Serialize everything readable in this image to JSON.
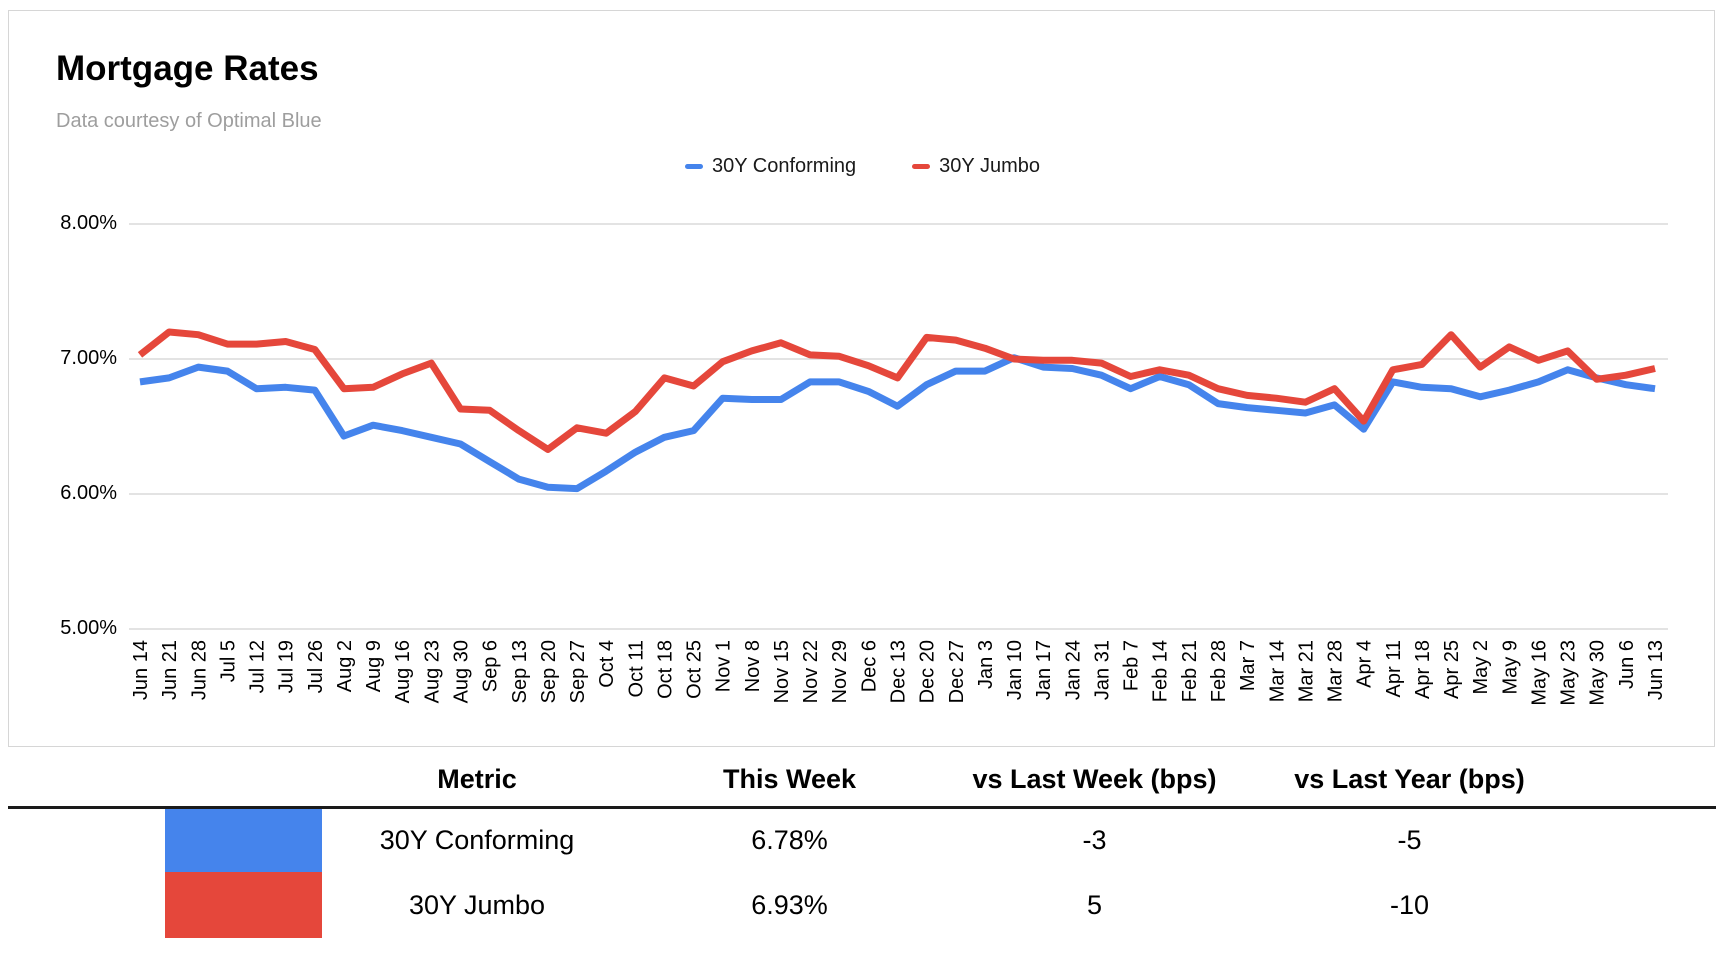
{
  "header": {
    "title": "Mortgage Rates",
    "subtitle": "Data courtesy of Optimal Blue"
  },
  "colors": {
    "conforming_blue": "#4584ec",
    "jumbo_red": "#e5473b",
    "gridline": "#dadada",
    "subtitle_gray": "#9e9e9e"
  },
  "legend": [
    {
      "label": "30Y Conforming",
      "color": "#4584ec"
    },
    {
      "label": "30Y Jumbo",
      "color": "#e5473b"
    }
  ],
  "chart_data": {
    "type": "line",
    "title": "Mortgage Rates",
    "xlabel": "",
    "ylabel": "",
    "ylim": [
      5.0,
      8.0
    ],
    "grid": true,
    "legend_position": "top",
    "y_ticks": [
      {
        "value": 8,
        "label": "8.00%"
      },
      {
        "value": 7,
        "label": "7.00%"
      },
      {
        "value": 6,
        "label": "6.00%"
      },
      {
        "value": 5,
        "label": "5.00%"
      }
    ],
    "x": [
      "Jun 14",
      "Jun 21",
      "Jun 28",
      "Jul 5",
      "Jul 12",
      "Jul 19",
      "Jul 26",
      "Aug 2",
      "Aug 9",
      "Aug 16",
      "Aug 23",
      "Aug 30",
      "Sep 6",
      "Sep 13",
      "Sep 20",
      "Sep 27",
      "Oct 4",
      "Oct 11",
      "Oct 18",
      "Oct 25",
      "Nov 1",
      "Nov 8",
      "Nov 15",
      "Nov 22",
      "Nov 29",
      "Dec 6",
      "Dec 13",
      "Dec 20",
      "Dec 27",
      "Jan 3",
      "Jan 10",
      "Jan 17",
      "Jan 24",
      "Jan 31",
      "Feb 7",
      "Feb 14",
      "Feb 21",
      "Feb 28",
      "Mar 7",
      "Mar 14",
      "Mar 21",
      "Mar 28",
      "Apr 4",
      "Apr 11",
      "Apr 18",
      "Apr 25",
      "May 2",
      "May 9",
      "May 16",
      "May 23",
      "May 30",
      "Jun 6",
      "Jun 13"
    ],
    "series": [
      {
        "name": "30Y Conforming",
        "color": "#4584ec",
        "values": [
          6.83,
          6.86,
          6.94,
          6.91,
          6.78,
          6.79,
          6.77,
          6.43,
          6.51,
          6.47,
          6.42,
          6.37,
          6.24,
          6.11,
          6.05,
          6.04,
          6.17,
          6.31,
          6.42,
          6.47,
          6.71,
          6.7,
          6.7,
          6.83,
          6.83,
          6.76,
          6.65,
          6.81,
          6.91,
          6.91,
          7.01,
          6.94,
          6.93,
          6.88,
          6.78,
          6.87,
          6.81,
          6.67,
          6.64,
          6.62,
          6.6,
          6.66,
          6.48,
          6.83,
          6.79,
          6.78,
          6.72,
          6.77,
          6.83,
          6.92,
          6.86,
          6.81,
          6.78
        ]
      },
      {
        "name": "30Y Jumbo",
        "color": "#e5473b",
        "values": [
          7.03,
          7.2,
          7.18,
          7.11,
          7.11,
          7.13,
          7.07,
          6.78,
          6.79,
          6.89,
          6.97,
          6.63,
          6.62,
          6.47,
          6.33,
          6.49,
          6.45,
          6.61,
          6.86,
          6.8,
          6.98,
          7.06,
          7.12,
          7.03,
          7.02,
          6.95,
          6.86,
          7.16,
          7.14,
          7.08,
          7.0,
          6.99,
          6.99,
          6.97,
          6.87,
          6.92,
          6.88,
          6.78,
          6.73,
          6.71,
          6.68,
          6.78,
          6.54,
          6.92,
          6.96,
          7.18,
          6.94,
          7.09,
          6.99,
          7.06,
          6.85,
          6.88,
          6.93
        ]
      }
    ]
  },
  "table": {
    "headers": [
      "Metric",
      "This Week",
      "vs Last Week (bps)",
      "vs Last Year (bps)"
    ],
    "rows": [
      {
        "metric": "30Y Conforming",
        "swatch_color": "#4584ec",
        "this_week": "6.78%",
        "vs_last_week": "-3",
        "vs_last_year": "-5"
      },
      {
        "metric": "30Y Jumbo",
        "swatch_color": "#e5473b",
        "this_week": "6.93%",
        "vs_last_week": "5",
        "vs_last_year": "-10"
      }
    ]
  }
}
